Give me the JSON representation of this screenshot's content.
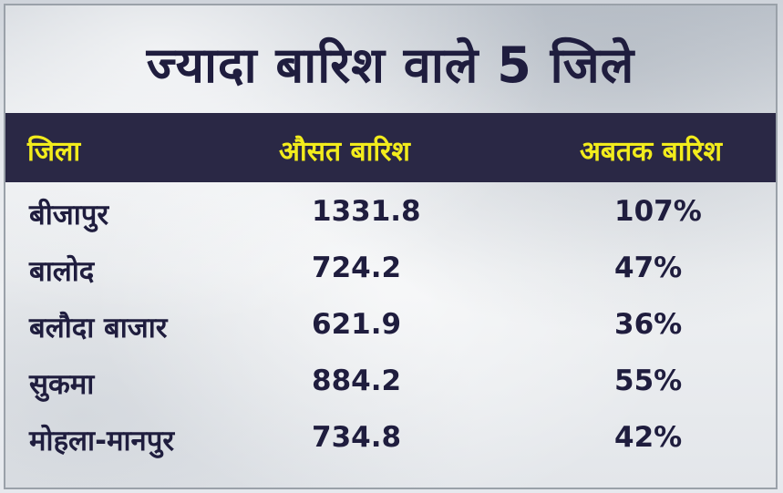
{
  "title": "ज्यादा बारिश वाले 5 जिले",
  "headers": {
    "district": "जिला",
    "average_rain": "औसत बारिश",
    "rain_so_far": "अबतक बारिश"
  },
  "rows": [
    {
      "district": "बीजापुर",
      "average": "1331.8",
      "so_far": "107%"
    },
    {
      "district": "बालोद",
      "average": "724.2",
      "so_far": "47%"
    },
    {
      "district": "बलौदा बाजार",
      "average": "621.9",
      "so_far": "36%"
    },
    {
      "district": "सुकमा",
      "average": "884.2",
      "so_far": "55%"
    },
    {
      "district": "मोहला-मानपुर",
      "average": "734.8",
      "so_far": "42%"
    }
  ],
  "colors": {
    "header_bg": "#2a2845",
    "header_text": "#f2ec1c",
    "body_text": "#1f1d3e"
  }
}
